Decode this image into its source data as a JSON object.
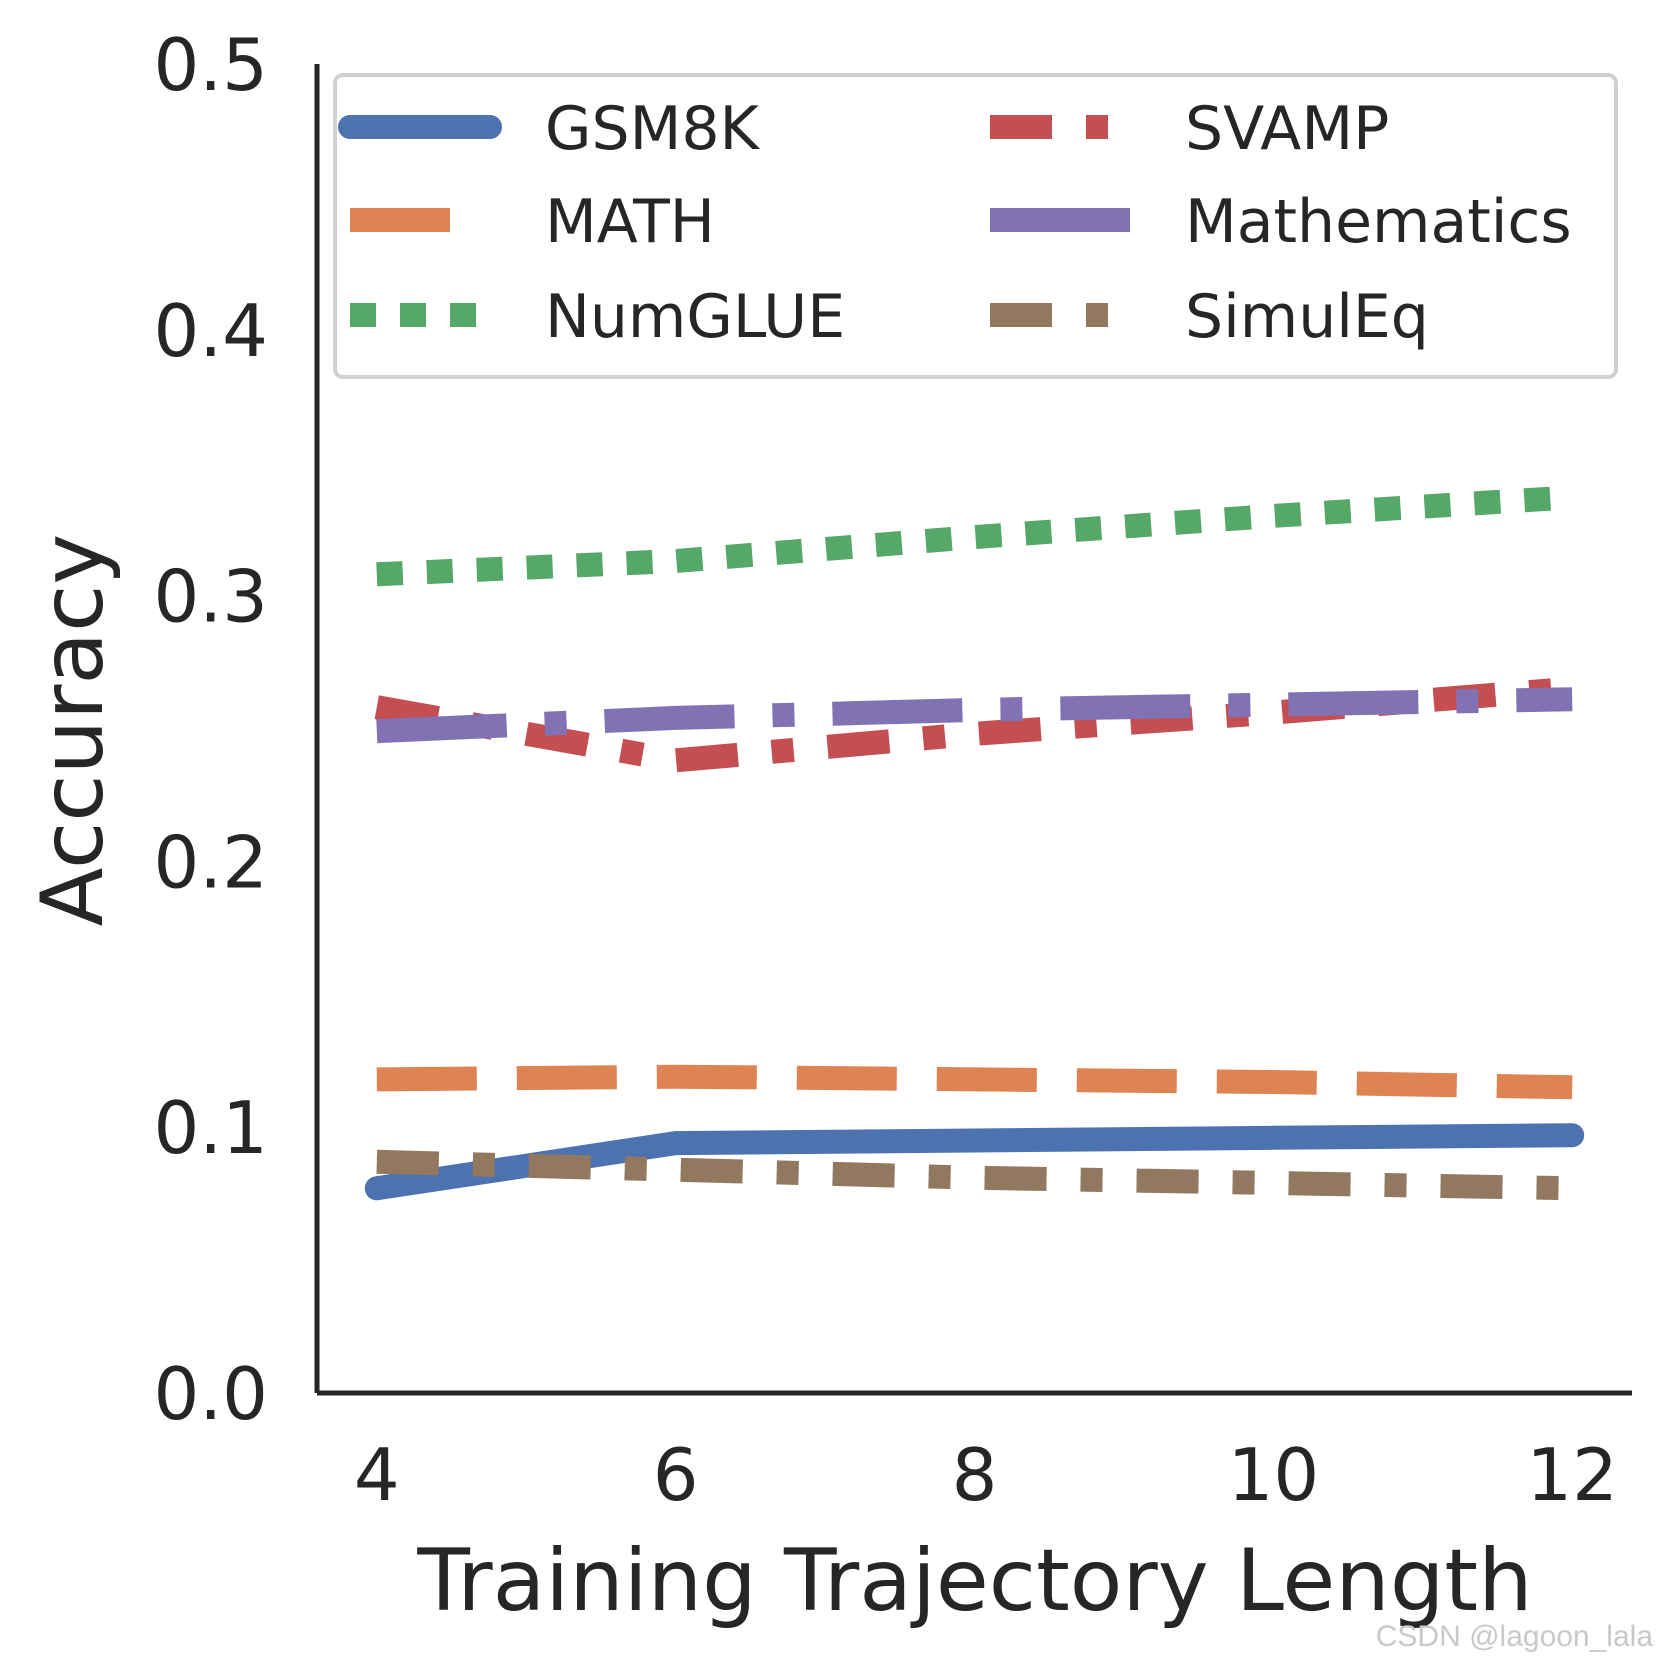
{
  "chart_data": {
    "type": "line",
    "title": "",
    "xlabel": "Training Trajectory Length",
    "ylabel": "Accuracy",
    "x": [
      4,
      6,
      8,
      10,
      12
    ],
    "xticks": [
      "4",
      "6",
      "8",
      "10",
      "12"
    ],
    "yticks": [
      "0.0",
      "0.1",
      "0.2",
      "0.3",
      "0.4",
      "0.5"
    ],
    "xlim": [
      3.6,
      12.4
    ],
    "ylim": [
      0,
      0.5
    ],
    "grid": false,
    "legend_position": "top",
    "series": [
      {
        "name": "GSM8K",
        "values": [
          0.077,
          0.094,
          0.095,
          0.096,
          0.097
        ],
        "color": "#4c72b0",
        "style": "solid"
      },
      {
        "name": "MATH",
        "values": [
          0.118,
          0.119,
          0.118,
          0.117,
          0.115
        ],
        "color": "#dd8452",
        "style": "dashed"
      },
      {
        "name": "NumGLUE",
        "values": [
          0.308,
          0.313,
          0.322,
          0.33,
          0.337
        ],
        "color": "#55a868",
        "style": "dotted"
      },
      {
        "name": "SVAMP",
        "values": [
          0.258,
          0.238,
          0.248,
          0.256,
          0.265
        ],
        "color": "#c44e52",
        "style": "dashdot"
      },
      {
        "name": "Mathematics",
        "values": [
          0.249,
          0.254,
          0.257,
          0.259,
          0.261
        ],
        "color": "#8172b3",
        "style": "dashdot2"
      },
      {
        "name": "SimulEq",
        "values": [
          0.087,
          0.084,
          0.081,
          0.079,
          0.077
        ],
        "color": "#937860",
        "style": "dashdot"
      }
    ]
  },
  "watermark": "CSDN @lagoon_lala"
}
